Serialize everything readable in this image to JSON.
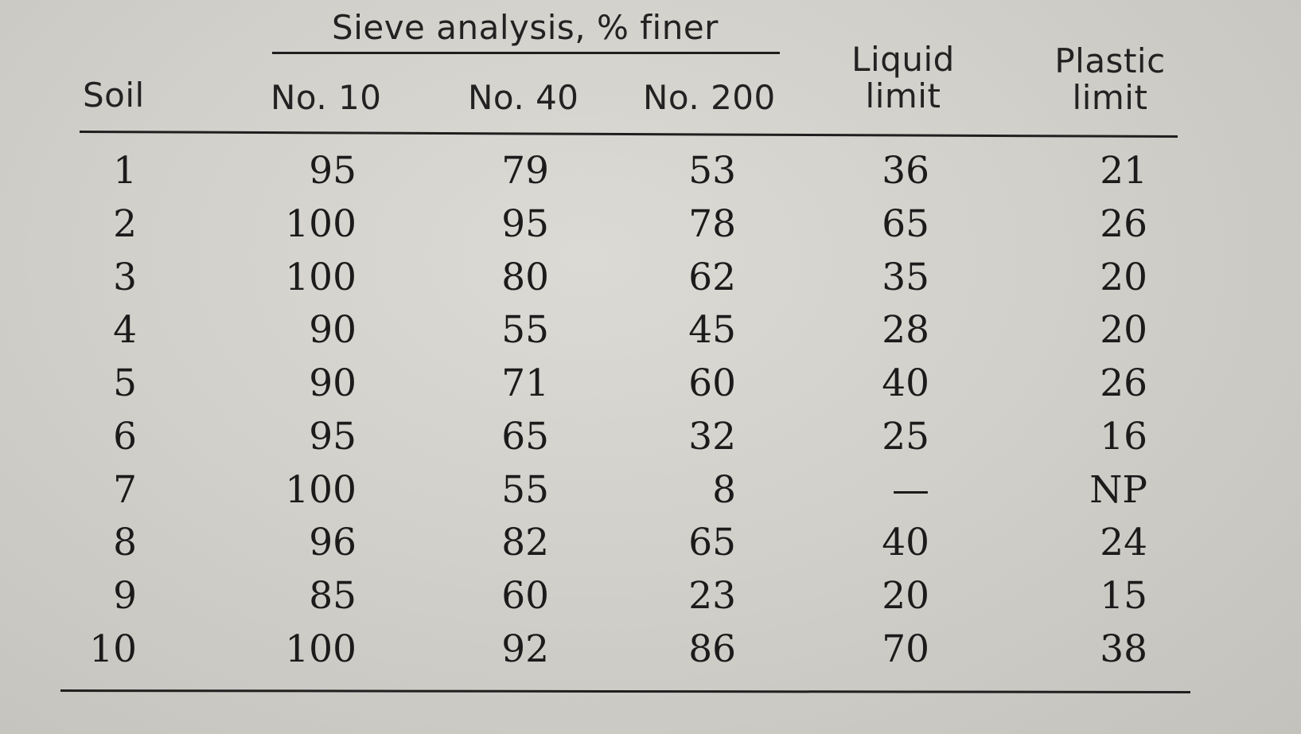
{
  "table": {
    "group_header": "Sieve analysis, % finer",
    "headers": {
      "soil": "Soil",
      "no10": "No. 10",
      "no40": "No. 40",
      "no200": "No. 200",
      "liquid_line1": "Liquid",
      "liquid_line2": "limit",
      "plastic_line1": "Plastic",
      "plastic_line2": "limit"
    },
    "rows": [
      {
        "soil": "1",
        "no10": "95",
        "no40": "79",
        "no200": "53",
        "ll": "36",
        "pl": "21"
      },
      {
        "soil": "2",
        "no10": "100",
        "no40": "95",
        "no200": "78",
        "ll": "65",
        "pl": "26"
      },
      {
        "soil": "3",
        "no10": "100",
        "no40": "80",
        "no200": "62",
        "ll": "35",
        "pl": "20"
      },
      {
        "soil": "4",
        "no10": "90",
        "no40": "55",
        "no200": "45",
        "ll": "28",
        "pl": "20"
      },
      {
        "soil": "5",
        "no10": "90",
        "no40": "71",
        "no200": "60",
        "ll": "40",
        "pl": "26"
      },
      {
        "soil": "6",
        "no10": "95",
        "no40": "65",
        "no200": "32",
        "ll": "25",
        "pl": "16"
      },
      {
        "soil": "7",
        "no10": "100",
        "no40": "55",
        "no200": "8",
        "ll": "—",
        "pl": "NP"
      },
      {
        "soil": "8",
        "no10": "96",
        "no40": "82",
        "no200": "65",
        "ll": "40",
        "pl": "24"
      },
      {
        "soil": "9",
        "no10": "85",
        "no40": "60",
        "no200": "23",
        "ll": "20",
        "pl": "15"
      },
      {
        "soil": "10",
        "no10": "100",
        "no40": "92",
        "no200": "86",
        "ll": "70",
        "pl": "38"
      }
    ]
  }
}
